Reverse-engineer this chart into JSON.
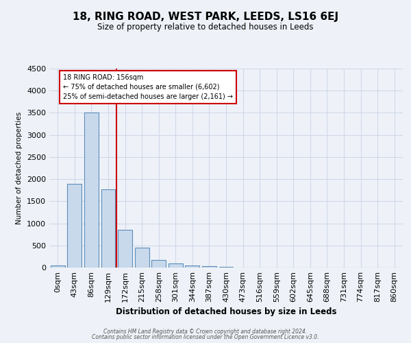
{
  "title": "18, RING ROAD, WEST PARK, LEEDS, LS16 6EJ",
  "subtitle": "Size of property relative to detached houses in Leeds",
  "xlabel": "Distribution of detached houses by size in Leeds",
  "ylabel": "Number of detached properties",
  "bar_labels": [
    "0sqm",
    "43sqm",
    "86sqm",
    "129sqm",
    "172sqm",
    "215sqm",
    "258sqm",
    "301sqm",
    "344sqm",
    "387sqm",
    "430sqm",
    "473sqm",
    "516sqm",
    "559sqm",
    "602sqm",
    "645sqm",
    "688sqm",
    "731sqm",
    "774sqm",
    "817sqm",
    "860sqm"
  ],
  "bar_values": [
    50,
    1900,
    3500,
    1775,
    850,
    450,
    175,
    100,
    50,
    30,
    20,
    0,
    0,
    0,
    0,
    0,
    0,
    0,
    0,
    0,
    0
  ],
  "bar_color": "#c9d9ec",
  "bar_edge_color": "#5b8db8",
  "red_line_x": 3.5,
  "red_line_label": "18 RING ROAD: 156sqm",
  "annotation_line1": "← 75% of detached houses are smaller (6,602)",
  "annotation_line2": "25% of semi-detached houses are larger (2,161) →",
  "annotation_box_color": "#ffffff",
  "annotation_box_edge": "#cc0000",
  "ylim": [
    0,
    4500
  ],
  "yticks": [
    0,
    500,
    1000,
    1500,
    2000,
    2500,
    3000,
    3500,
    4000,
    4500
  ],
  "grid_color": "#d0d8e8",
  "background_color": "#eef2f8",
  "footer_line1": "Contains HM Land Registry data © Crown copyright and database right 2024.",
  "footer_line2": "Contains public sector information licensed under the Open Government Licence v3.0."
}
